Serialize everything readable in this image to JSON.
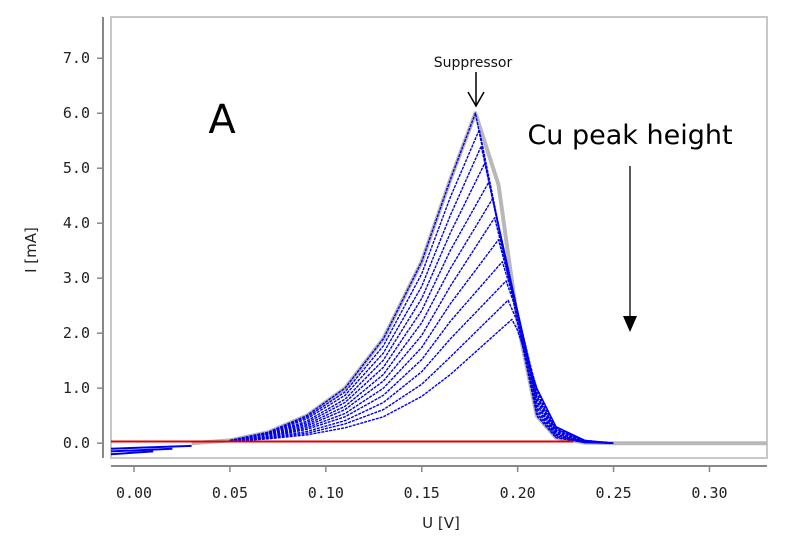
{
  "chart_data": {
    "type": "line",
    "title": "",
    "xlabel": "U [V]",
    "ylabel": "I [mA]",
    "xlim": [
      -0.012,
      0.33
    ],
    "ylim": [
      -0.27,
      7.75
    ],
    "x_ticks": [
      "0.00",
      "0.05",
      "0.10",
      "0.15",
      "0.20",
      "0.25",
      "0.30"
    ],
    "x_tick_values": [
      0,
      0.05,
      0.1,
      0.15,
      0.2,
      0.25,
      0.3
    ],
    "y_ticks": [
      "0.0",
      "1.0",
      "2.0",
      "3.0",
      "4.0",
      "5.0",
      "6.0",
      "7.0"
    ],
    "y_tick_values": [
      0,
      1,
      2,
      3,
      4,
      5,
      6,
      7
    ],
    "grid": false,
    "colors": {
      "curves": "#0000ee",
      "envelope": "#b8b8b8",
      "baseline": "#e00000",
      "axis": "#888888"
    },
    "annotations": {
      "panel_label": "A",
      "peak_label": "Suppressor",
      "trend_label": "Cu peak height",
      "trend_direction": "down"
    },
    "envelope": {
      "x": [
        0.03,
        0.05,
        0.07,
        0.09,
        0.11,
        0.13,
        0.15,
        0.165,
        0.178,
        0.19,
        0.2,
        0.21,
        0.22,
        0.235,
        0.25,
        0.33
      ],
      "y": [
        0.0,
        0.05,
        0.2,
        0.5,
        1.0,
        1.9,
        3.3,
        4.8,
        6.0,
        4.7,
        2.2,
        0.5,
        0.1,
        0.01,
        0.0,
        0.0
      ]
    },
    "baseline": {
      "x": [
        -0.012,
        0.229
      ],
      "y": [
        0.03,
        0.03
      ]
    },
    "offset_segments": [
      {
        "x": [
          -0.012,
          0.03
        ],
        "y": [
          -0.1,
          -0.05
        ]
      },
      {
        "x": [
          -0.012,
          0.02
        ],
        "y": [
          -0.15,
          -0.1
        ]
      },
      {
        "x": [
          -0.012,
          0.01
        ],
        "y": [
          -0.2,
          -0.15
        ]
      }
    ],
    "series": [
      {
        "x": [
          0.05,
          0.07,
          0.09,
          0.11,
          0.13,
          0.15,
          0.165,
          0.178,
          0.2,
          0.21,
          0.22,
          0.235,
          0.25
        ],
        "y": [
          0.05,
          0.2,
          0.5,
          1.0,
          1.9,
          3.3,
          4.8,
          6.0,
          2.2,
          0.5,
          0.1,
          0.01,
          0
        ]
      },
      {
        "x": [
          0.05,
          0.07,
          0.09,
          0.11,
          0.13,
          0.15,
          0.165,
          0.18,
          0.2,
          0.21,
          0.22,
          0.235,
          0.25
        ],
        "y": [
          0.05,
          0.19,
          0.47,
          0.93,
          1.77,
          3.08,
          4.48,
          5.7,
          2.25,
          0.55,
          0.12,
          0.01,
          0
        ]
      },
      {
        "x": [
          0.05,
          0.07,
          0.09,
          0.11,
          0.13,
          0.15,
          0.165,
          0.181,
          0.2,
          0.21,
          0.22,
          0.235,
          0.25
        ],
        "y": [
          0.05,
          0.18,
          0.44,
          0.87,
          1.64,
          2.85,
          4.15,
          5.4,
          2.3,
          0.6,
          0.14,
          0.02,
          0
        ]
      },
      {
        "x": [
          0.05,
          0.07,
          0.09,
          0.11,
          0.13,
          0.15,
          0.165,
          0.183,
          0.2,
          0.21,
          0.22,
          0.235,
          0.25
        ],
        "y": [
          0.04,
          0.17,
          0.4,
          0.8,
          1.51,
          2.63,
          3.83,
          5.1,
          2.35,
          0.65,
          0.16,
          0.02,
          0
        ]
      },
      {
        "x": [
          0.05,
          0.07,
          0.09,
          0.11,
          0.13,
          0.15,
          0.165,
          0.185,
          0.2,
          0.21,
          0.22,
          0.235,
          0.25
        ],
        "y": [
          0.04,
          0.16,
          0.37,
          0.74,
          1.38,
          2.41,
          3.51,
          4.75,
          2.4,
          0.7,
          0.18,
          0.02,
          0
        ]
      },
      {
        "x": [
          0.05,
          0.07,
          0.09,
          0.11,
          0.13,
          0.15,
          0.165,
          0.187,
          0.2,
          0.21,
          0.22,
          0.235,
          0.25
        ],
        "y": [
          0.04,
          0.15,
          0.34,
          0.67,
          1.25,
          2.19,
          3.18,
          4.45,
          2.4,
          0.75,
          0.2,
          0.03,
          0
        ]
      },
      {
        "x": [
          0.05,
          0.07,
          0.09,
          0.11,
          0.13,
          0.15,
          0.165,
          0.188,
          0.2,
          0.21,
          0.22,
          0.235,
          0.25
        ],
        "y": [
          0.04,
          0.13,
          0.31,
          0.61,
          1.13,
          1.96,
          2.86,
          4.1,
          2.4,
          0.8,
          0.22,
          0.03,
          0
        ]
      },
      {
        "x": [
          0.05,
          0.07,
          0.09,
          0.11,
          0.13,
          0.15,
          0.165,
          0.19,
          0.2,
          0.21,
          0.22,
          0.235,
          0.25
        ],
        "y": [
          0.04,
          0.12,
          0.28,
          0.54,
          1.0,
          1.74,
          2.54,
          3.7,
          2.4,
          0.85,
          0.24,
          0.04,
          0
        ]
      },
      {
        "x": [
          0.05,
          0.07,
          0.09,
          0.11,
          0.13,
          0.15,
          0.165,
          0.192,
          0.2,
          0.21,
          0.22,
          0.235,
          0.25
        ],
        "y": [
          0.03,
          0.11,
          0.25,
          0.48,
          0.87,
          1.52,
          2.22,
          3.3,
          2.4,
          0.9,
          0.26,
          0.04,
          0
        ]
      },
      {
        "x": [
          0.05,
          0.07,
          0.09,
          0.11,
          0.13,
          0.15,
          0.165,
          0.194,
          0.2,
          0.21,
          0.22,
          0.235,
          0.25
        ],
        "y": [
          0.03,
          0.1,
          0.21,
          0.41,
          0.74,
          1.3,
          1.9,
          2.95,
          2.35,
          0.95,
          0.28,
          0.05,
          0
        ]
      },
      {
        "x": [
          0.05,
          0.07,
          0.09,
          0.11,
          0.13,
          0.15,
          0.165,
          0.195,
          0.2,
          0.21,
          0.22,
          0.235,
          0.25
        ],
        "y": [
          0.03,
          0.09,
          0.18,
          0.35,
          0.61,
          1.07,
          1.57,
          2.6,
          2.2,
          1.0,
          0.3,
          0.05,
          0
        ]
      },
      {
        "x": [
          0.05,
          0.07,
          0.09,
          0.11,
          0.13,
          0.15,
          0.165,
          0.197,
          0.2,
          0.21,
          0.22,
          0.235,
          0.25
        ],
        "y": [
          0.03,
          0.08,
          0.15,
          0.28,
          0.48,
          0.85,
          1.25,
          2.25,
          2.05,
          1.0,
          0.3,
          0.05,
          0
        ]
      }
    ]
  }
}
